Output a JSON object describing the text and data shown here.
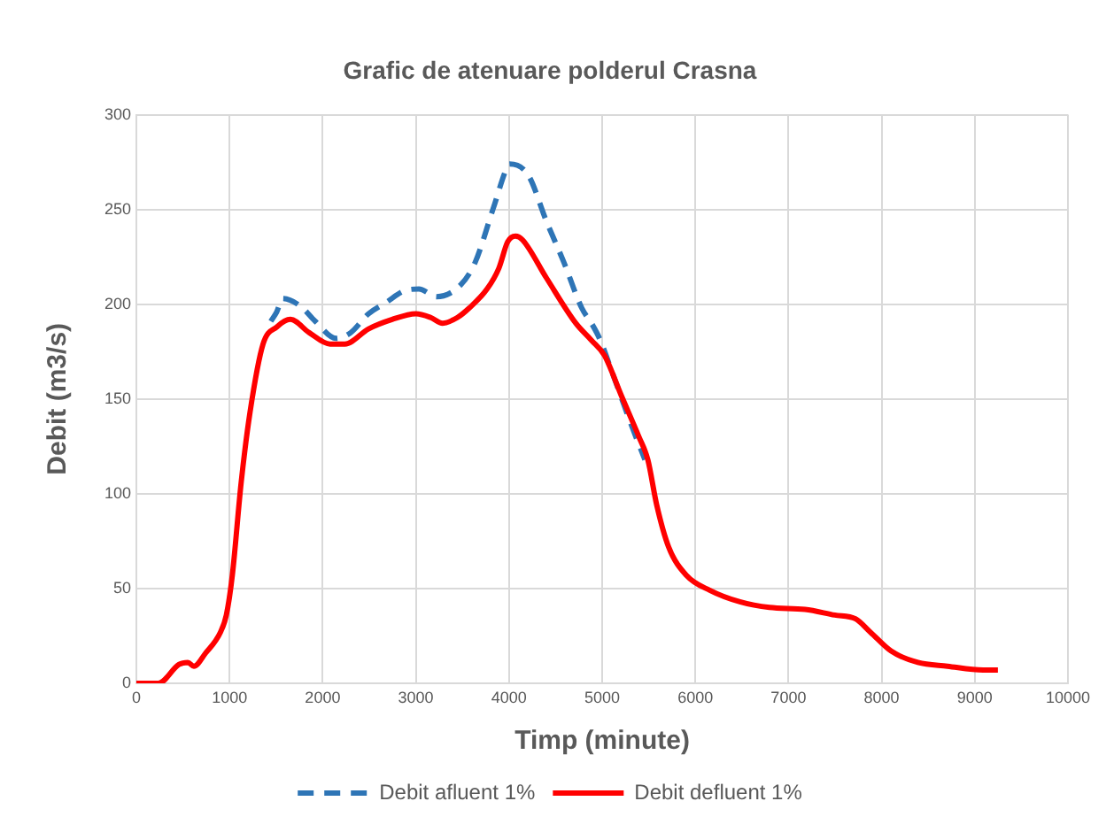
{
  "chart_data": {
    "type": "line",
    "title": "Grafic de atenuare polderul Crasna",
    "xlabel": "Timp (minute)",
    "ylabel": "Debit (m3/s)",
    "xlim": [
      0,
      10000
    ],
    "xticks": [
      0,
      1000,
      2000,
      3000,
      4000,
      5000,
      6000,
      7000,
      8000,
      9000,
      10000
    ],
    "ylim": [
      0,
      300
    ],
    "yticks": [
      0,
      50,
      100,
      150,
      200,
      250,
      300
    ],
    "grid": true,
    "legend": "bottom",
    "marker": "none",
    "series": [
      {
        "name": "Debit afluent 1%",
        "color": "#2e75b6",
        "line_style": "dashed",
        "x": [
          1443,
          1507,
          1570,
          1761,
          1920,
          2143,
          2301,
          2492,
          2683,
          2873,
          3032,
          3223,
          3477,
          3636,
          3827,
          3986,
          4005,
          4208,
          4400,
          4590,
          4781,
          4885,
          4971,
          5108,
          5331,
          5459
        ],
        "values": [
          191,
          196,
          203,
          199,
          191,
          182,
          185,
          195,
          201,
          207,
          208,
          204,
          210,
          222,
          250,
          273,
          274,
          268,
          244,
          222,
          198,
          190,
          182,
          164,
          134,
          118
        ]
      },
      {
        "name": "Debit defluent 1%",
        "color": "#ff0000",
        "line_style": "solid",
        "x": [
          0,
          235,
          458,
          553,
          617,
          744,
          903,
          966,
          1030,
          1125,
          1220,
          1360,
          1507,
          1653,
          1856,
          2079,
          2238,
          2492,
          2746,
          3000,
          3160,
          3287,
          3446,
          3573,
          3764,
          3891,
          3986,
          4069,
          4145,
          4400,
          4717,
          4885,
          5025,
          5204,
          5395,
          5490,
          5586,
          5713,
          5904,
          6159,
          6478,
          6796,
          7178,
          7497,
          7720,
          7879,
          8102,
          8389,
          8707,
          9089,
          9248
        ],
        "values": [
          0,
          0,
          10,
          11,
          9,
          16,
          27,
          36,
          57,
          106,
          143,
          179,
          188,
          192,
          185,
          179,
          179,
          187,
          192,
          195,
          193,
          190,
          193,
          198,
          208,
          219,
          233,
          236,
          234,
          214,
          190,
          181,
          173,
          152,
          130,
          118,
          94,
          72,
          57,
          49,
          43,
          40,
          39,
          36,
          34,
          27,
          17,
          11,
          9,
          7,
          7
        ]
      }
    ]
  }
}
